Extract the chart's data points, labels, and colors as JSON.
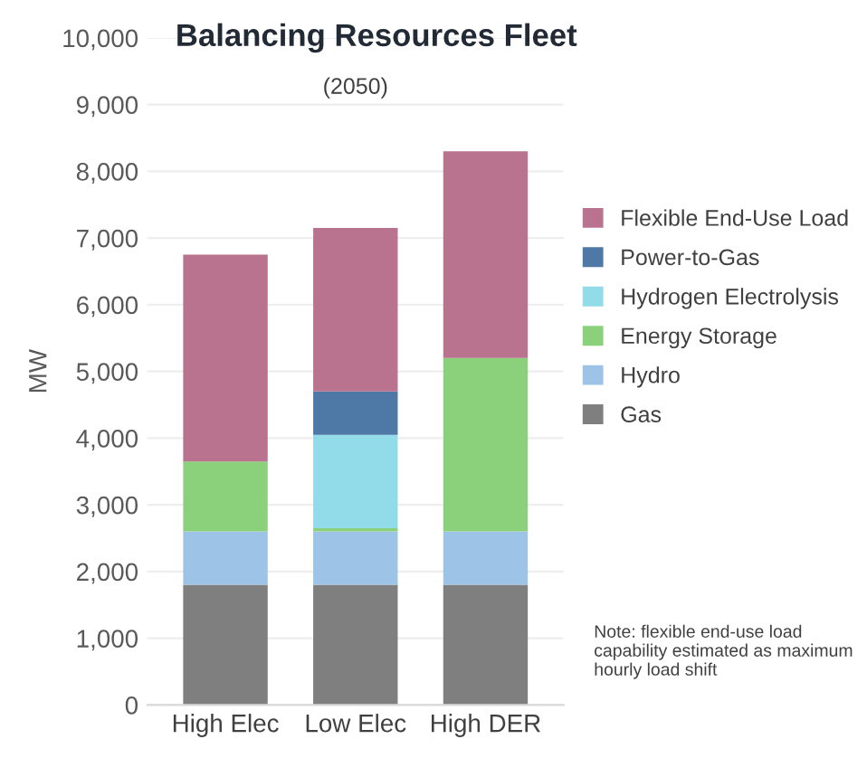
{
  "chart_data": {
    "type": "bar",
    "stacked": true,
    "title": "Balancing Resources Fleet",
    "subtitle": "(2050)",
    "ylabel": "MW",
    "categories": [
      "High Elec",
      "Low Elec",
      "High DER"
    ],
    "series": [
      {
        "name": "Gas",
        "color": "#7f7f7f",
        "values": [
          1800,
          1800,
          1800
        ]
      },
      {
        "name": "Hydro",
        "color": "#9dc3e6",
        "values": [
          800,
          800,
          800
        ]
      },
      {
        "name": "Energy Storage",
        "color": "#8bd17c",
        "values": [
          1050,
          50,
          2600
        ]
      },
      {
        "name": "Hydrogen Electrolysis",
        "color": "#92dce9",
        "values": [
          0,
          1400,
          0
        ]
      },
      {
        "name": "Power-to-Gas",
        "color": "#4e79a7",
        "values": [
          0,
          650,
          0
        ]
      },
      {
        "name": "Flexible End-Use Load",
        "color": "#b9738f",
        "values": [
          3100,
          2450,
          3100
        ]
      }
    ],
    "ylim": [
      0,
      10000
    ],
    "yticks": [
      {
        "value": 0,
        "label": "0"
      },
      {
        "value": 1000,
        "label": "1,000"
      },
      {
        "value": 2000,
        "label": "2,000"
      },
      {
        "value": 3000,
        "label": "3,000"
      },
      {
        "value": 4000,
        "label": "4,000"
      },
      {
        "value": 5000,
        "label": "5,000"
      },
      {
        "value": 6000,
        "label": "6,000"
      },
      {
        "value": 7000,
        "label": "7,000"
      },
      {
        "value": 8000,
        "label": "8,000"
      },
      {
        "value": 9000,
        "label": "9,000"
      },
      {
        "value": 10000,
        "label": "10,000"
      }
    ],
    "grid": "y",
    "legend": "right",
    "annotations": [
      "Note: flexible end-use load capability estimated as maximum hourly load shift"
    ]
  }
}
